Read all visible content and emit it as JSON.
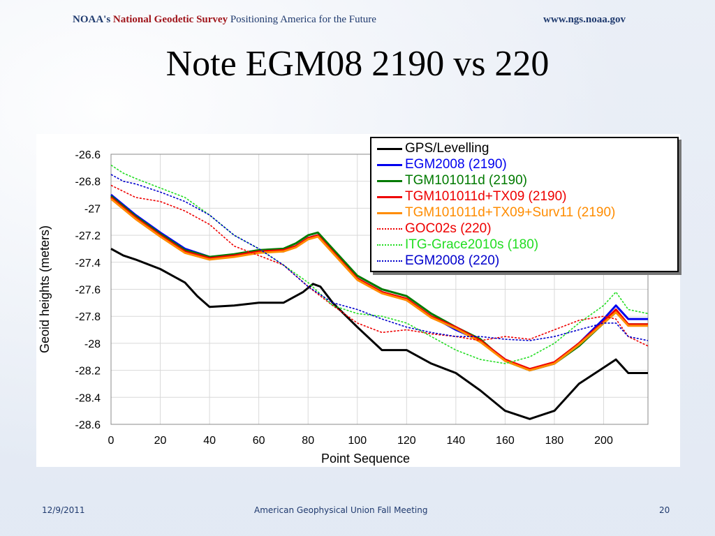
{
  "header": {
    "org_prefix": "NOAA's",
    "org_name": "National Geodetic Survey",
    "tagline": "Positioning America for the Future",
    "url": "www.ngs.noaa.gov"
  },
  "slide": {
    "title": "Note EGM08 2190 vs 220"
  },
  "footer": {
    "date": "12/9/2011",
    "event": "American Geophysical Union Fall Meeting",
    "page_number": "20"
  },
  "chart_data": {
    "type": "line",
    "title": "",
    "xlabel": "Point Sequence",
    "ylabel": "Geoid heights (meters)",
    "xlim": [
      0,
      218
    ],
    "ylim": [
      -28.6,
      -26.6
    ],
    "xticks": [
      0,
      20,
      40,
      60,
      80,
      100,
      120,
      140,
      160,
      180,
      200
    ],
    "yticks": [
      -26.6,
      -26.8,
      -27,
      -27.2,
      -27.4,
      -27.6,
      -27.8,
      -28,
      -28.2,
      -28.4,
      -28.6
    ],
    "ytick_labels": [
      "-26.6",
      "-26.8",
      "-27",
      "-27.2",
      "-27.4",
      "-27.6",
      "-27.8",
      "-28",
      "-28.2",
      "-28.4",
      "-28.6"
    ],
    "grid": true,
    "legend_position": "top-right",
    "series": [
      {
        "name": "GPS/Levelling",
        "color": "#000000",
        "style": "solid",
        "x": [
          0,
          5,
          10,
          20,
          30,
          35,
          40,
          50,
          60,
          70,
          78,
          82,
          85,
          90,
          100,
          110,
          120,
          130,
          140,
          150,
          160,
          170,
          180,
          190,
          200,
          205,
          210,
          218
        ],
        "y": [
          -27.3,
          -27.35,
          -27.38,
          -27.45,
          -27.55,
          -27.65,
          -27.73,
          -27.72,
          -27.7,
          -27.7,
          -27.62,
          -27.56,
          -27.58,
          -27.7,
          -27.88,
          -28.05,
          -28.05,
          -28.15,
          -28.22,
          -28.35,
          -28.5,
          -28.56,
          -28.5,
          -28.3,
          -28.18,
          -28.12,
          -28.22,
          -28.22
        ]
      },
      {
        "name": "EGM2008 (2190)",
        "color": "#0000ee",
        "style": "solid",
        "x": [
          0,
          10,
          20,
          30,
          40,
          50,
          60,
          70,
          75,
          80,
          84,
          88,
          95,
          100,
          110,
          120,
          130,
          140,
          150,
          160,
          170,
          180,
          190,
          200,
          205,
          210,
          218
        ],
        "y": [
          -26.9,
          -27.05,
          -27.18,
          -27.3,
          -27.36,
          -27.35,
          -27.32,
          -27.32,
          -27.28,
          -27.22,
          -27.2,
          -27.28,
          -27.42,
          -27.52,
          -27.62,
          -27.68,
          -27.8,
          -27.9,
          -27.98,
          -28.12,
          -28.2,
          -28.15,
          -28.0,
          -27.82,
          -27.72,
          -27.82,
          -27.82
        ]
      },
      {
        "name": "TGM101011d (2190)",
        "color": "#007a00",
        "style": "solid",
        "x": [
          0,
          10,
          20,
          30,
          40,
          50,
          60,
          70,
          75,
          80,
          84,
          88,
          95,
          100,
          110,
          120,
          130,
          140,
          150,
          160,
          170,
          180,
          190,
          200,
          205,
          210,
          218
        ],
        "y": [
          -26.91,
          -27.06,
          -27.19,
          -27.31,
          -27.36,
          -27.34,
          -27.31,
          -27.3,
          -27.26,
          -27.2,
          -27.18,
          -27.26,
          -27.4,
          -27.5,
          -27.6,
          -27.65,
          -27.78,
          -27.88,
          -27.97,
          -28.13,
          -28.2,
          -28.15,
          -28.02,
          -27.85,
          -27.77,
          -27.86,
          -27.86
        ]
      },
      {
        "name": "TGM101011d+TX09 (2190)",
        "color": "#ee0000",
        "style": "solid",
        "x": [
          0,
          10,
          20,
          30,
          40,
          50,
          60,
          70,
          75,
          80,
          84,
          88,
          95,
          100,
          110,
          120,
          130,
          140,
          150,
          160,
          170,
          180,
          190,
          200,
          205,
          210,
          218
        ],
        "y": [
          -26.92,
          -27.07,
          -27.2,
          -27.32,
          -27.37,
          -27.35,
          -27.32,
          -27.31,
          -27.28,
          -27.22,
          -27.2,
          -27.28,
          -27.42,
          -27.52,
          -27.62,
          -27.67,
          -27.8,
          -27.88,
          -27.98,
          -28.12,
          -28.19,
          -28.14,
          -28.0,
          -27.84,
          -27.75,
          -27.86,
          -27.86
        ]
      },
      {
        "name": "TGM101011d+TX09+Surv11 (2190)",
        "color": "#ff8c00",
        "style": "solid",
        "x": [
          0,
          10,
          20,
          30,
          40,
          50,
          60,
          70,
          75,
          80,
          84,
          88,
          95,
          100,
          110,
          120,
          130,
          140,
          150,
          160,
          170,
          180,
          190,
          200,
          205,
          210,
          218
        ],
        "y": [
          -26.93,
          -27.08,
          -27.21,
          -27.33,
          -27.38,
          -27.36,
          -27.33,
          -27.32,
          -27.29,
          -27.23,
          -27.21,
          -27.29,
          -27.43,
          -27.53,
          -27.63,
          -27.68,
          -27.81,
          -27.89,
          -27.99,
          -28.13,
          -28.2,
          -28.15,
          -28.01,
          -27.85,
          -27.77,
          -27.87,
          -27.87
        ]
      },
      {
        "name": "GOC02s (220)",
        "color": "#ee0000",
        "style": "dotted",
        "x": [
          0,
          10,
          20,
          30,
          40,
          50,
          60,
          70,
          80,
          90,
          100,
          110,
          120,
          130,
          140,
          150,
          160,
          170,
          180,
          190,
          200,
          205,
          210,
          218
        ],
        "y": [
          -26.83,
          -26.92,
          -26.95,
          -27.02,
          -27.12,
          -27.28,
          -27.35,
          -27.42,
          -27.58,
          -27.72,
          -27.85,
          -27.92,
          -27.9,
          -27.93,
          -27.95,
          -27.98,
          -27.95,
          -27.97,
          -27.9,
          -27.83,
          -27.8,
          -27.82,
          -27.95,
          -28.02
        ]
      },
      {
        "name": "ITG-Grace2010s (180)",
        "color": "#22dd22",
        "style": "dotted",
        "x": [
          0,
          5,
          10,
          20,
          30,
          40,
          50,
          60,
          70,
          80,
          90,
          100,
          110,
          120,
          130,
          140,
          150,
          160,
          170,
          180,
          190,
          200,
          205,
          210,
          218
        ],
        "y": [
          -26.68,
          -26.74,
          -26.78,
          -26.85,
          -26.92,
          -27.05,
          -27.2,
          -27.3,
          -27.42,
          -27.55,
          -27.72,
          -27.78,
          -27.8,
          -27.85,
          -27.95,
          -28.05,
          -28.12,
          -28.15,
          -28.1,
          -28.0,
          -27.85,
          -27.72,
          -27.62,
          -27.75,
          -27.78
        ]
      },
      {
        "name": "EGM2008 (220)",
        "color": "#0000cc",
        "style": "dotted",
        "x": [
          0,
          5,
          10,
          20,
          30,
          40,
          50,
          60,
          70,
          80,
          90,
          100,
          110,
          120,
          130,
          140,
          150,
          160,
          170,
          180,
          190,
          200,
          205,
          210,
          218
        ],
        "y": [
          -26.75,
          -26.8,
          -26.82,
          -26.88,
          -26.95,
          -27.05,
          -27.2,
          -27.3,
          -27.42,
          -27.58,
          -27.7,
          -27.75,
          -27.82,
          -27.88,
          -27.92,
          -27.95,
          -27.95,
          -27.97,
          -27.98,
          -27.95,
          -27.9,
          -27.85,
          -27.85,
          -27.95,
          -27.98
        ]
      }
    ]
  }
}
